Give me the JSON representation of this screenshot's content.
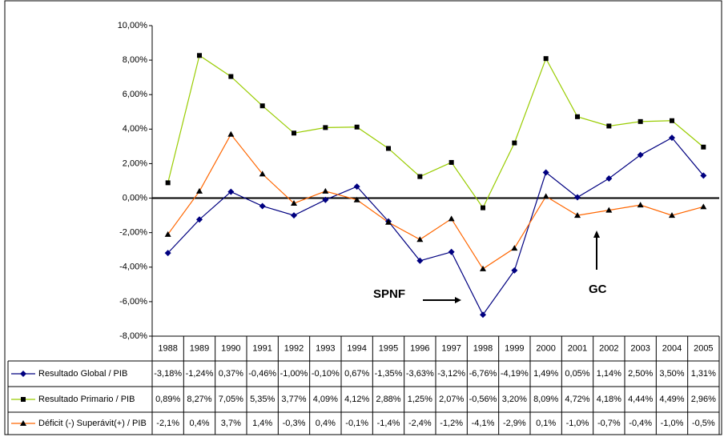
{
  "chart_data": {
    "type": "line",
    "categories": [
      "1988",
      "1989",
      "1990",
      "1991",
      "1992",
      "1993",
      "1994",
      "1995",
      "1996",
      "1997",
      "1998",
      "1999",
      "2000",
      "2001",
      "2002",
      "2003",
      "2004",
      "2005"
    ],
    "series": [
      {
        "name": "Resultado Global / PIB",
        "color": "#000080",
        "marker": "diamond",
        "values": [
          -3.18,
          -1.24,
          0.37,
          -0.46,
          -1.0,
          -0.1,
          0.67,
          -1.35,
          -3.63,
          -3.12,
          -6.76,
          -4.19,
          1.49,
          0.05,
          1.14,
          2.5,
          3.5,
          1.31
        ],
        "value_labels": [
          "-3,18%",
          "-1,24%",
          "0,37%",
          "-0,46%",
          "-1,00%",
          "-0,10%",
          "0,67%",
          "-1,35%",
          "-3,63%",
          "-3,12%",
          "-6,76%",
          "-4,19%",
          "1,49%",
          "0,05%",
          "1,14%",
          "2,50%",
          "3,50%",
          "1,31%"
        ]
      },
      {
        "name": "Resultado Primario / PIB",
        "color": "#99cc00",
        "marker": "square",
        "values": [
          0.89,
          8.27,
          7.05,
          5.35,
          3.77,
          4.09,
          4.12,
          2.88,
          1.25,
          2.07,
          -0.56,
          3.2,
          8.09,
          4.72,
          4.18,
          4.44,
          4.49,
          2.96
        ],
        "value_labels": [
          "0,89%",
          "8,27%",
          "7,05%",
          "5,35%",
          "3,77%",
          "4,09%",
          "4,12%",
          "2,88%",
          "1,25%",
          "2,07%",
          "-0,56%",
          "3,20%",
          "8,09%",
          "4,72%",
          "4,18%",
          "4,44%",
          "4,49%",
          "2,96%"
        ]
      },
      {
        "name": "Déficit (-) Superávit(+) / PIB",
        "color": "#ff6600",
        "marker": "triangle",
        "values": [
          -2.1,
          0.4,
          3.7,
          1.4,
          -0.3,
          0.4,
          -0.1,
          -1.4,
          -2.4,
          -1.2,
          -4.1,
          -2.9,
          0.1,
          -1.0,
          -0.7,
          -0.4,
          -1.0,
          -0.5
        ],
        "value_labels": [
          "-2,1%",
          "0,4%",
          "3,7%",
          "1,4%",
          "-0,3%",
          "0,4%",
          "-0,1%",
          "-1,4%",
          "-2,4%",
          "-1,2%",
          "-4,1%",
          "-2,9%",
          "0,1%",
          "-1,0%",
          "-0,7%",
          "-0,4%",
          "-1,0%",
          "-0,5%"
        ]
      }
    ],
    "ylim": [
      -8,
      10
    ],
    "yticks": [
      {
        "value": -8,
        "label": "-8,00%"
      },
      {
        "value": -6,
        "label": "-6,00%"
      },
      {
        "value": -4,
        "label": "-4,00%"
      },
      {
        "value": -2,
        "label": "-2,00%"
      },
      {
        "value": 0,
        "label": "0,00%"
      },
      {
        "value": 2,
        "label": "2,00%"
      },
      {
        "value": 4,
        "label": "4,00%"
      },
      {
        "value": 6,
        "label": "6,00%"
      },
      {
        "value": 8,
        "label": "8,00%"
      },
      {
        "value": 10,
        "label": "10,00%"
      }
    ],
    "grid": false,
    "annotations": [
      "SPNF",
      "GC"
    ]
  }
}
